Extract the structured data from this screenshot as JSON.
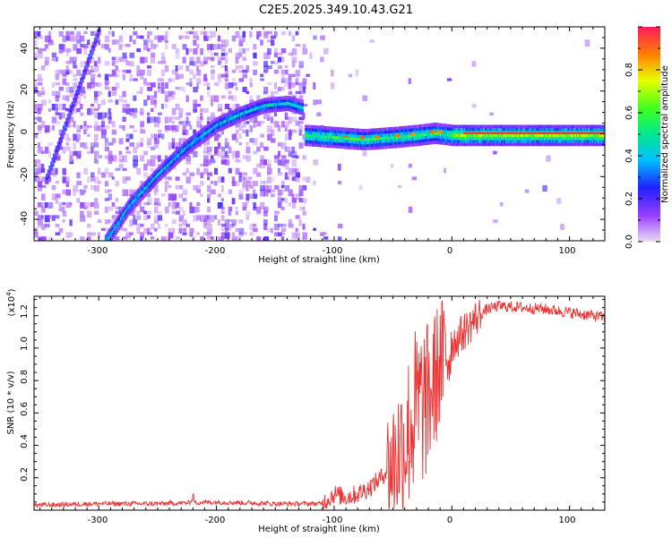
{
  "title": "C2E5.2025.349.10.43.G21",
  "top_panel": {
    "ylabel": "Frequency (Hz)",
    "xlabel": "Height of straight line (km)",
    "xticks": [
      "-300",
      "-200",
      "-100",
      "0",
      "100"
    ],
    "yticks": [
      "40",
      "20",
      "0",
      "-20",
      "-40"
    ],
    "colorbar_label": "Normalized spectral amplitude",
    "colorbar_ticks": [
      "0.0",
      "0.2",
      "0.4",
      "0.6",
      "0.8"
    ]
  },
  "bottom_panel": {
    "ylabel": "SNR (10 * v/v)",
    "scale_label": "(x10",
    "scale_exp": "4",
    "scale_close": ")",
    "xlabel": "Height of straight line (km)",
    "xticks": [
      "-300",
      "-200",
      "-100",
      "0",
      "100"
    ],
    "yticks": [
      "1.2",
      "1.0",
      "0.8",
      "0.6",
      "0.4",
      "0.2"
    ]
  },
  "colors": {
    "snr_line": "#ee3333",
    "bar_top": "#ff1a5e",
    "bar_bottom": "#e8d8f0"
  },
  "chart_data": [
    {
      "type": "heatmap",
      "title": "C2E5.2025.349.10.43.G21",
      "xlabel": "Height of straight line (km)",
      "ylabel": "Frequency (Hz)",
      "xlim": [
        -355,
        130
      ],
      "ylim": [
        -50,
        50
      ],
      "colorbar": {
        "label": "Normalized spectral amplitude",
        "range": [
          0,
          1
        ]
      },
      "ridge_main": {
        "x": [
          -295,
          -275,
          -250,
          -225,
          -200,
          -180,
          -160,
          -140,
          -128
        ],
        "y": [
          -50,
          -33,
          -18,
          -5,
          5,
          10,
          14,
          15,
          13
        ]
      },
      "ridge_diagonal": {
        "x": [
          -345,
          -300
        ],
        "y": [
          -20,
          50
        ]
      },
      "ridge_flat": {
        "x": [
          -125,
          -100,
          -75,
          -50,
          -30,
          -15,
          0,
          50,
          130
        ],
        "y": [
          0,
          -1,
          -2,
          -1,
          0,
          1,
          0,
          0,
          0
        ]
      }
    },
    {
      "type": "line",
      "xlabel": "Height of straight line (km)",
      "ylabel": "SNR (10 * v/v)",
      "scale": 10000,
      "xlim": [
        -355,
        130
      ],
      "ylim": [
        0,
        1.32
      ],
      "x": [
        -355,
        -300,
        -250,
        -200,
        -150,
        -110,
        -100,
        -90,
        -80,
        -70,
        -60,
        -50,
        -40,
        -30,
        -20,
        -10,
        0,
        10,
        20,
        30,
        40,
        60,
        80,
        100,
        130
      ],
      "y": [
        0.03,
        0.04,
        0.04,
        0.05,
        0.04,
        0.04,
        0.1,
        0.08,
        0.1,
        0.14,
        0.2,
        0.3,
        0.42,
        0.62,
        0.68,
        0.9,
        1.02,
        1.1,
        1.18,
        1.24,
        1.26,
        1.25,
        1.24,
        1.22,
        1.19
      ]
    }
  ]
}
